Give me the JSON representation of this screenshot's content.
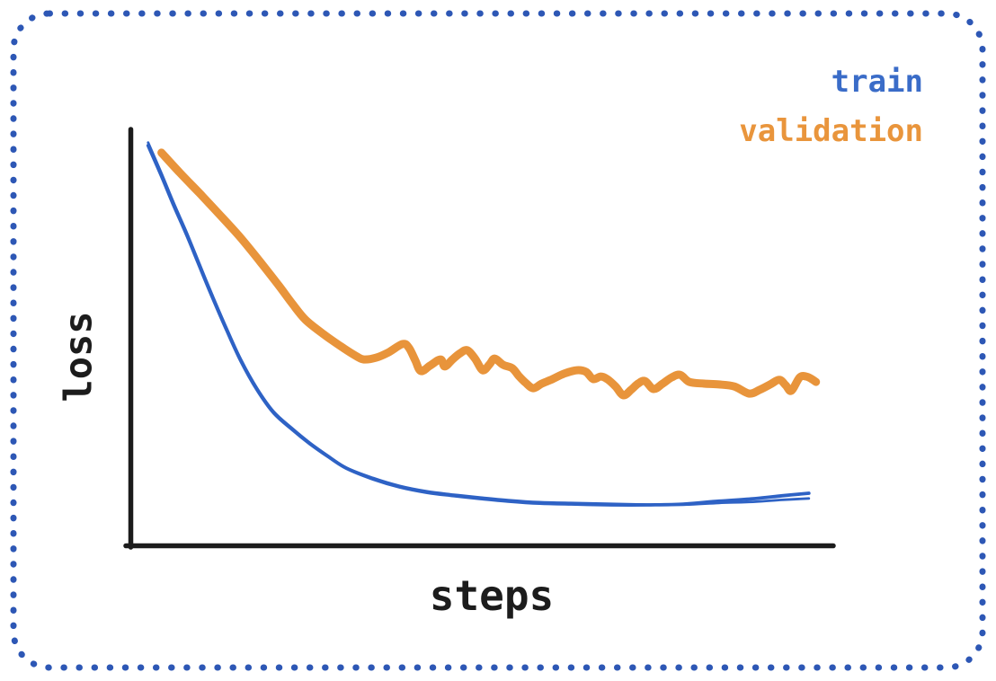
{
  "frame": {
    "border_color": "#2d57b5",
    "style": "dotted rounded rectangle"
  },
  "legend": {
    "position": "top-right",
    "items": [
      {
        "label": "train",
        "color": "#3a6cc8"
      },
      {
        "label": "validation",
        "color": "#e9953c"
      }
    ]
  },
  "chart_data": {
    "type": "line",
    "title": "",
    "xlabel": "steps",
    "ylabel": "loss",
    "axis_color": "#1c1c1c",
    "grid": false,
    "ticks_visible": false,
    "legend_position": "top-right",
    "xlim": [
      0,
      1
    ],
    "ylim": [
      0,
      1
    ],
    "series": [
      {
        "name": "train",
        "color": "#2e62c5",
        "stroke_width": 3.8,
        "style": "smooth, double-stroked hand-drawn line; decays fast and flattens near the bottom",
        "points": [
          [
            0.024,
            0.959
          ],
          [
            0.043,
            0.886
          ],
          [
            0.061,
            0.813
          ],
          [
            0.079,
            0.744
          ],
          [
            0.097,
            0.67
          ],
          [
            0.115,
            0.597
          ],
          [
            0.136,
            0.515
          ],
          [
            0.156,
            0.442
          ],
          [
            0.179,
            0.373
          ],
          [
            0.203,
            0.317
          ],
          [
            0.229,
            0.278
          ],
          [
            0.254,
            0.244
          ],
          [
            0.28,
            0.213
          ],
          [
            0.306,
            0.185
          ],
          [
            0.344,
            0.159
          ],
          [
            0.382,
            0.14
          ],
          [
            0.421,
            0.127
          ],
          [
            0.459,
            0.119
          ],
          [
            0.497,
            0.112
          ],
          [
            0.536,
            0.106
          ],
          [
            0.581,
            0.101
          ],
          [
            0.632,
            0.099
          ],
          [
            0.683,
            0.097
          ],
          [
            0.734,
            0.097
          ],
          [
            0.785,
            0.099
          ],
          [
            0.836,
            0.106
          ],
          [
            0.887,
            0.112
          ],
          [
            0.926,
            0.119
          ],
          [
            0.964,
            0.125
          ]
        ]
      },
      {
        "name": "validation",
        "color": "#e8943b",
        "stroke_width": 9,
        "style": "thick noisy hand-drawn line; decays then plateaus above train with jitter",
        "points": [
          [
            0.043,
            0.942
          ],
          [
            0.069,
            0.894
          ],
          [
            0.097,
            0.845
          ],
          [
            0.127,
            0.791
          ],
          [
            0.156,
            0.737
          ],
          [
            0.184,
            0.679
          ],
          [
            0.21,
            0.623
          ],
          [
            0.229,
            0.58
          ],
          [
            0.248,
            0.541
          ],
          [
            0.274,
            0.506
          ],
          [
            0.303,
            0.472
          ],
          [
            0.321,
            0.453
          ],
          [
            0.331,
            0.446
          ],
          [
            0.348,
            0.45
          ],
          [
            0.366,
            0.463
          ],
          [
            0.386,
            0.483
          ],
          [
            0.395,
            0.474
          ],
          [
            0.404,
            0.444
          ],
          [
            0.412,
            0.418
          ],
          [
            0.425,
            0.431
          ],
          [
            0.44,
            0.446
          ],
          [
            0.446,
            0.429
          ],
          [
            0.457,
            0.446
          ],
          [
            0.468,
            0.461
          ],
          [
            0.478,
            0.468
          ],
          [
            0.489,
            0.448
          ],
          [
            0.5,
            0.42
          ],
          [
            0.51,
            0.435
          ],
          [
            0.517,
            0.448
          ],
          [
            0.529,
            0.433
          ],
          [
            0.542,
            0.425
          ],
          [
            0.551,
            0.407
          ],
          [
            0.561,
            0.39
          ],
          [
            0.572,
            0.377
          ],
          [
            0.584,
            0.388
          ],
          [
            0.597,
            0.397
          ],
          [
            0.616,
            0.412
          ],
          [
            0.634,
            0.42
          ],
          [
            0.647,
            0.416
          ],
          [
            0.657,
            0.399
          ],
          [
            0.668,
            0.405
          ],
          [
            0.677,
            0.399
          ],
          [
            0.689,
            0.381
          ],
          [
            0.7,
            0.36
          ],
          [
            0.711,
            0.373
          ],
          [
            0.721,
            0.388
          ],
          [
            0.731,
            0.394
          ],
          [
            0.743,
            0.375
          ],
          [
            0.756,
            0.388
          ],
          [
            0.769,
            0.403
          ],
          [
            0.781,
            0.409
          ],
          [
            0.794,
            0.392
          ],
          [
            0.815,
            0.388
          ],
          [
            0.836,
            0.386
          ],
          [
            0.858,
            0.381
          ],
          [
            0.879,
            0.364
          ],
          [
            0.894,
            0.373
          ],
          [
            0.909,
            0.386
          ],
          [
            0.922,
            0.397
          ],
          [
            0.931,
            0.384
          ],
          [
            0.939,
            0.371
          ],
          [
            0.951,
            0.403
          ],
          [
            0.96,
            0.405
          ],
          [
            0.968,
            0.399
          ],
          [
            0.974,
            0.392
          ]
        ]
      }
    ]
  }
}
